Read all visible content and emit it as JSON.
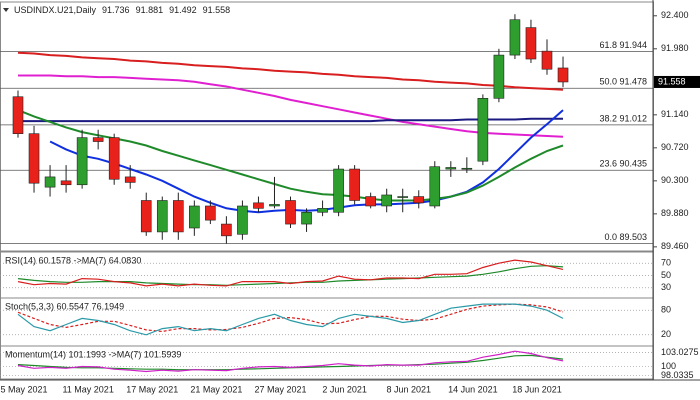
{
  "chart_data": [
    {
      "type": "candlestick",
      "title": "USDINDX.U21,Daily",
      "dates": [
        null,
        "5 May 2021",
        null,
        null,
        null,
        "11 May 2021",
        null,
        null,
        null,
        "17 May 2021",
        null,
        null,
        null,
        "21 May 2021",
        null,
        null,
        null,
        "27 May 2021",
        null,
        null,
        null,
        "2 Jun 2021",
        null,
        null,
        null,
        "8 Jun 2021",
        null,
        null,
        null,
        "14 Jun 2021",
        null,
        null,
        null,
        "18 Jun 2021",
        null
      ],
      "open": [
        91.37,
        90.9,
        90.22,
        90.3,
        90.25,
        90.85,
        90.85,
        90.35,
        90.05,
        89.65,
        90.05,
        89.7,
        89.98,
        89.75,
        89.62,
        90.02,
        89.98,
        90.05,
        89.75,
        89.9,
        89.9,
        90.45,
        90.1,
        89.98,
        90.1,
        90.1,
        89.98,
        90.45,
        90.45,
        90.55,
        91.35,
        91.9,
        92.25,
        91.95,
        91.736
      ],
      "high": [
        91.45,
        91.0,
        90.5,
        90.5,
        90.95,
        90.95,
        90.9,
        90.5,
        90.15,
        90.1,
        90.15,
        90.05,
        90.05,
        89.85,
        90.05,
        90.1,
        90.35,
        90.1,
        89.95,
        90.05,
        90.5,
        90.5,
        90.15,
        90.2,
        90.2,
        90.18,
        90.55,
        90.55,
        90.6,
        91.4,
        91.98,
        92.42,
        92.35,
        92.1,
        91.881
      ],
      "low": [
        90.85,
        90.15,
        90.1,
        90.15,
        90.2,
        90.7,
        90.25,
        90.2,
        89.6,
        89.55,
        89.55,
        89.6,
        89.75,
        89.5,
        89.55,
        89.9,
        89.95,
        89.7,
        89.65,
        89.85,
        89.85,
        90.0,
        89.95,
        89.9,
        89.9,
        89.95,
        89.95,
        90.35,
        90.4,
        90.5,
        91.3,
        91.85,
        91.8,
        91.65,
        91.492
      ],
      "close": [
        90.9,
        90.27,
        90.35,
        90.25,
        90.85,
        90.8,
        90.32,
        90.28,
        89.65,
        90.05,
        89.65,
        89.98,
        89.8,
        89.6,
        89.98,
        89.95,
        90.0,
        89.75,
        89.9,
        89.95,
        90.45,
        90.05,
        89.98,
        90.12,
        90.1,
        90.02,
        90.48,
        90.47,
        90.46,
        91.35,
        91.9,
        92.35,
        91.85,
        91.72,
        91.558
      ],
      "up_color": "#2e9e2e",
      "down_color": "#e8211b",
      "ylim": [
        89.42,
        92.55
      ],
      "yticks": [
        {
          "value": 92.4,
          "label": "92.400"
        },
        {
          "value": 91.98,
          "label": "91.980"
        },
        {
          "value": 91.14,
          "label": "91.140"
        },
        {
          "value": 90.72,
          "label": "90.720"
        },
        {
          "value": 90.3,
          "label": "90.300"
        },
        {
          "value": 89.88,
          "label": "89.880"
        },
        {
          "value": 89.46,
          "label": "89.460"
        }
      ],
      "fib_levels": [
        {
          "label": "61.8 91.944",
          "value": 91.944
        },
        {
          "label": "50.0 91.478",
          "value": 91.478
        },
        {
          "label": "38.2 91.012",
          "value": 91.012
        },
        {
          "label": "23.6 90.435",
          "value": 90.435
        },
        {
          "label": "0.0 89.503",
          "value": 89.503
        }
      ],
      "series": [
        {
          "color": "#d81e1e",
          "width": 2,
          "values": [
            91.93,
            91.92,
            91.9,
            91.89,
            91.87,
            91.86,
            91.85,
            91.83,
            91.82,
            91.8,
            91.79,
            91.77,
            91.76,
            91.75,
            91.73,
            91.72,
            91.7,
            91.69,
            91.68,
            91.66,
            91.65,
            91.63,
            91.62,
            91.61,
            91.59,
            91.58,
            91.56,
            91.55,
            91.54,
            91.52,
            91.51,
            91.49,
            91.48,
            91.47,
            91.46
          ]
        },
        {
          "color": "#e020d0",
          "width": 2,
          "values": [
            91.64,
            91.64,
            91.64,
            91.63,
            91.63,
            91.62,
            91.62,
            91.61,
            91.6,
            91.59,
            91.58,
            91.56,
            91.53,
            91.5,
            91.46,
            91.42,
            91.38,
            91.33,
            91.29,
            91.25,
            91.21,
            91.17,
            91.13,
            91.09,
            91.05,
            91.02,
            90.99,
            90.96,
            90.93,
            90.91,
            90.9,
            90.89,
            90.88,
            90.87,
            90.86
          ]
        },
        {
          "color": "#1a1a80",
          "width": 2,
          "values": [
            91.06,
            91.06,
            91.06,
            91.06,
            91.06,
            91.06,
            91.06,
            91.06,
            91.06,
            91.06,
            91.06,
            91.06,
            91.06,
            91.06,
            91.06,
            91.06,
            91.06,
            91.06,
            91.06,
            91.06,
            91.06,
            91.06,
            91.06,
            91.07,
            91.07,
            91.07,
            91.07,
            91.07,
            91.08,
            91.08,
            91.08,
            91.08,
            91.09,
            91.09,
            91.09
          ]
        },
        {
          "color": "#1030e0",
          "width": 2,
          "values": [
            null,
            null,
            90.8,
            90.7,
            90.62,
            90.58,
            90.52,
            90.45,
            90.38,
            90.3,
            90.2,
            90.1,
            90.02,
            89.95,
            89.92,
            89.9,
            89.92,
            89.93,
            89.92,
            89.93,
            89.96,
            89.99,
            90.0,
            90.0,
            90.01,
            90.02,
            90.05,
            90.1,
            90.16,
            90.28,
            90.45,
            90.65,
            90.85,
            91.02,
            91.2
          ]
        },
        {
          "color": "#1f8a2a",
          "width": 2,
          "values": [
            91.2,
            91.12,
            91.05,
            90.98,
            90.92,
            90.88,
            90.84,
            90.8,
            90.75,
            90.68,
            90.62,
            90.56,
            90.5,
            90.44,
            90.38,
            90.32,
            90.26,
            90.2,
            90.16,
            90.13,
            90.12,
            90.1,
            90.07,
            90.05,
            90.05,
            90.05,
            90.07,
            90.1,
            90.15,
            90.24,
            90.35,
            90.47,
            90.58,
            90.68,
            90.75
          ]
        }
      ]
    },
    {
      "type": "line",
      "title": "RSI(14) 60.1578 ->MA(7) 64.0830",
      "ylim": [
        15,
        85
      ],
      "yticks": [
        70,
        50,
        30
      ],
      "series": [
        {
          "color": "#1f8a2a",
          "values": [
            45,
            42,
            40,
            39,
            39,
            40,
            40,
            40,
            38,
            37,
            36,
            35,
            35,
            34,
            35,
            36,
            37,
            38,
            39,
            39,
            41,
            42,
            43,
            44,
            45,
            46,
            47,
            48,
            49,
            52,
            56,
            61,
            65,
            66,
            64
          ]
        },
        {
          "color": "#d81e1e",
          "values": [
            40,
            35,
            37,
            36,
            45,
            44,
            40,
            38,
            33,
            36,
            33,
            36,
            34,
            33,
            40,
            40,
            40,
            37,
            40,
            41,
            49,
            44,
            43,
            46,
            46,
            45,
            52,
            52,
            53,
            63,
            70,
            75,
            72,
            66,
            60
          ]
        }
      ]
    },
    {
      "type": "line",
      "title": "Stoch(5,3,3) 60.5547 76.1949",
      "ylim": [
        -5,
        105
      ],
      "yticks": [
        80,
        20
      ],
      "series": [
        {
          "color": "#d81e1e",
          "dashed": true,
          "values": [
            75,
            60,
            45,
            38,
            45,
            53,
            53,
            43,
            32,
            28,
            35,
            35,
            32,
            33,
            38,
            48,
            60,
            62,
            57,
            47,
            48,
            57,
            65,
            65,
            58,
            55,
            58,
            70,
            82,
            90,
            93,
            95,
            93,
            88,
            76
          ]
        },
        {
          "color": "#2a9aa8",
          "values": [
            70,
            40,
            30,
            45,
            60,
            55,
            45,
            30,
            20,
            35,
            40,
            30,
            35,
            30,
            45,
            60,
            70,
            55,
            45,
            40,
            60,
            70,
            65,
            60,
            50,
            55,
            70,
            85,
            90,
            95,
            95,
            95,
            90,
            80,
            60
          ]
        }
      ]
    },
    {
      "type": "line",
      "title": "Momentum(14) 101.1993 ->MA(7) 101.5939",
      "ylim": [
        97.5,
        104
      ],
      "yticks": [
        103.0275,
        100,
        98.0335
      ],
      "series": [
        {
          "color": "#1f8a2a",
          "values": [
            100.4,
            100.2,
            100.0,
            99.8,
            99.7,
            99.7,
            99.6,
            99.5,
            99.4,
            99.4,
            99.3,
            99.3,
            99.3,
            99.3,
            99.4,
            99.5,
            99.6,
            99.7,
            99.8,
            99.9,
            100.0,
            100.1,
            100.2,
            100.3,
            100.3,
            100.4,
            100.5,
            100.7,
            100.9,
            101.3,
            101.8,
            102.3,
            102.4,
            102.0,
            101.6
          ]
        },
        {
          "color": "#d020c8",
          "values": [
            100.2,
            99.6,
            99.8,
            99.6,
            100.0,
            99.9,
            99.4,
            99.2,
            98.9,
            99.2,
            99.0,
            99.3,
            99.2,
            99.1,
            99.6,
            99.9,
            100.0,
            99.8,
            100.0,
            100.2,
            100.6,
            100.3,
            100.1,
            100.4,
            100.3,
            100.3,
            100.8,
            101.0,
            101.1,
            102.0,
            102.6,
            103.3,
            102.8,
            101.9,
            101.2
          ]
        }
      ]
    }
  ]
}
